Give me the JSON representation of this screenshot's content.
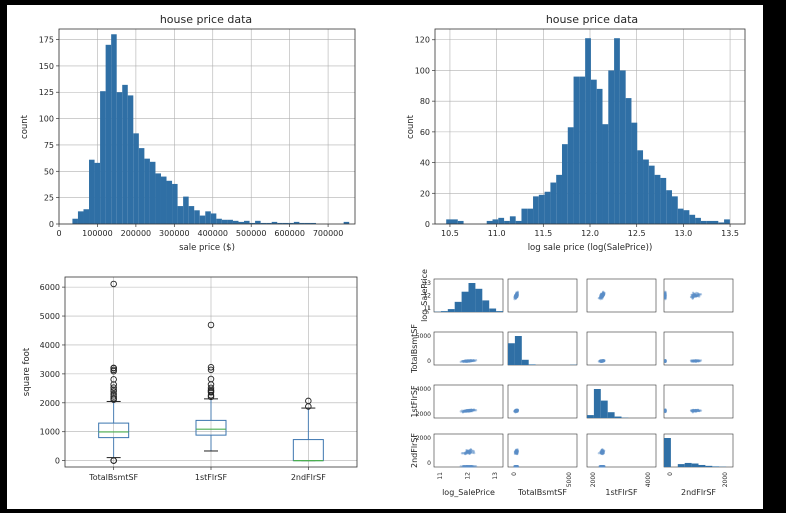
{
  "chart_data": [
    {
      "type": "bar",
      "title": "house price data",
      "xlabel": "sale price ($)",
      "ylabel": "count",
      "xlim": [
        0,
        770000
      ],
      "ylim": [
        0,
        185
      ],
      "xticks": [
        0,
        100000,
        200000,
        300000,
        400000,
        500000,
        600000,
        700000
      ],
      "xtick_labels": [
        "0",
        "100000",
        "200000",
        "300000",
        "400000",
        "500000",
        "600000",
        "700000"
      ],
      "yticks": [
        0,
        25,
        50,
        75,
        100,
        125,
        150,
        175
      ],
      "yticks_labels": [
        "0",
        "25",
        "50",
        "75",
        "100",
        "125",
        "150",
        "175"
      ],
      "grid": true,
      "bin_start": 34900,
      "bin_width": 14400,
      "values": [
        5,
        12,
        14,
        61,
        58,
        126,
        170,
        180,
        125,
        132,
        122,
        86,
        72,
        62,
        59,
        48,
        45,
        41,
        38,
        17,
        26,
        17,
        13,
        8,
        12,
        10,
        5,
        4,
        4,
        3,
        2,
        3,
        1,
        3,
        1,
        1,
        2,
        1,
        1,
        1,
        2,
        1,
        1,
        1,
        0,
        0,
        0,
        0,
        0,
        2
      ]
    },
    {
      "type": "bar",
      "title": "house price data",
      "xlabel": "log sale price (log(SalePrice))",
      "ylabel": "count",
      "xlim": [
        10.34,
        13.66
      ],
      "ylim": [
        0,
        127
      ],
      "xticks": [
        10.5,
        11.0,
        11.5,
        12.0,
        12.5,
        13.0,
        13.5
      ],
      "xtick_labels": [
        "10.5",
        "11.0",
        "11.5",
        "12.0",
        "12.5",
        "13.0",
        "13.5"
      ],
      "yticks": [
        0,
        20,
        40,
        60,
        80,
        100,
        120
      ],
      "yticks_labels": [
        "0",
        "20",
        "40",
        "60",
        "80",
        "100",
        "120"
      ],
      "grid": true,
      "bin_start": 10.46,
      "bin_width": 0.062,
      "values": [
        3,
        3,
        2,
        0,
        0,
        0,
        0,
        2,
        3,
        4,
        2,
        5,
        2,
        10,
        10,
        18,
        19,
        21,
        27,
        32,
        52,
        63,
        96,
        96,
        121,
        94,
        88,
        65,
        100,
        121,
        100,
        82,
        66,
        48,
        42,
        38,
        32,
        30,
        22,
        18,
        10,
        9,
        6,
        4,
        2,
        2,
        2,
        1,
        3
      ]
    },
    {
      "type": "box",
      "xlabel": "",
      "ylabel": "square foot",
      "ylim": [
        -220,
        6350
      ],
      "yticks": [
        0,
        1000,
        2000,
        3000,
        4000,
        5000,
        6000
      ],
      "yticks_labels": [
        "0",
        "1000",
        "2000",
        "3000",
        "4000",
        "5000",
        "6000"
      ],
      "grid": true,
      "categories": [
        "TotalBsmtSF",
        "1stFlrSF",
        "2ndFlrSF"
      ],
      "boxes": [
        {
          "whislo": 105,
          "q1": 796,
          "med": 992,
          "q3": 1298,
          "whishi": 2046,
          "fliers": [
            0,
            0,
            2110,
            2158,
            2220,
            2300,
            2392,
            2444,
            2524,
            2630,
            2810,
            3094,
            3138,
            3200,
            3206,
            6110
          ]
        },
        {
          "whislo": 334,
          "q1": 882,
          "med": 1087,
          "q3": 1392,
          "whishi": 2136,
          "fliers": [
            2207,
            2259,
            2364,
            2402,
            2444,
            2515,
            2633,
            2822,
            3138,
            3228,
            4692
          ]
        },
        {
          "whislo": 0,
          "q1": 0,
          "med": 0,
          "q3": 728,
          "whishi": 1818,
          "fliers": [
            1872,
            2065
          ]
        }
      ]
    },
    {
      "type": "scatter",
      "title": "",
      "variables": [
        "log_SalePrice",
        "TotalBsmtSF",
        "1stFlrSF",
        "2ndFlrSF"
      ],
      "row_tick_labels": [
        [
          "11",
          "12",
          "13"
        ],
        [
          "0",
          "5000"
        ],
        [
          "2000",
          "4000"
        ],
        [
          "0",
          "2000"
        ]
      ],
      "col_tick_labels": [
        [
          "11",
          "12",
          "13"
        ],
        [
          "0",
          "5000"
        ],
        [
          "2000",
          "4000"
        ],
        [
          "0",
          "2000"
        ]
      ],
      "diag_hist": [
        [
          1,
          3,
          10,
          35,
          70,
          100,
          80,
          40,
          12,
          3
        ],
        [
          75,
          100,
          18,
          2,
          0,
          0,
          0,
          0,
          0,
          1
        ],
        [
          10,
          100,
          60,
          20,
          5,
          1,
          0,
          0,
          0,
          0
        ],
        [
          100,
          0,
          10,
          14,
          12,
          7,
          4,
          2,
          1,
          0
        ]
      ]
    }
  ]
}
